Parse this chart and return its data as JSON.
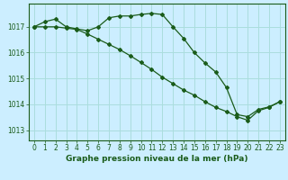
{
  "title": "Graphe pression niveau de la mer (hPa)",
  "background_color": "#cceeff",
  "grid_color": "#aadddd",
  "line_color": "#1a5c1a",
  "xlim": [
    -0.5,
    23.5
  ],
  "ylim": [
    1012.6,
    1017.9
  ],
  "yticks": [
    1013,
    1014,
    1015,
    1016,
    1017
  ],
  "xticks": [
    0,
    1,
    2,
    3,
    4,
    5,
    6,
    7,
    8,
    9,
    10,
    11,
    12,
    13,
    14,
    15,
    16,
    17,
    18,
    19,
    20,
    21,
    22,
    23
  ],
  "series1_x": [
    0,
    1,
    2,
    3,
    4,
    5,
    6,
    7,
    8,
    9,
    10,
    11,
    12,
    13,
    14,
    15,
    16,
    17,
    18,
    19,
    20,
    21,
    22,
    23
  ],
  "series1_y": [
    1017.0,
    1017.2,
    1017.3,
    1017.0,
    1016.92,
    1016.85,
    1017.0,
    1017.35,
    1017.42,
    1017.42,
    1017.48,
    1017.52,
    1017.48,
    1017.0,
    1016.55,
    1016.0,
    1015.6,
    1015.25,
    1014.65,
    1013.6,
    1013.52,
    1013.8,
    1013.9,
    1014.1
  ],
  "series2_x": [
    0,
    1,
    2,
    3,
    4,
    5,
    6,
    7,
    8,
    9,
    10,
    11,
    12,
    13,
    14,
    15,
    16,
    17,
    18,
    19,
    20,
    21,
    22,
    23
  ],
  "series2_y": [
    1017.0,
    1017.0,
    1017.0,
    1016.95,
    1016.9,
    1016.72,
    1016.52,
    1016.32,
    1016.12,
    1015.88,
    1015.62,
    1015.35,
    1015.05,
    1014.8,
    1014.55,
    1014.35,
    1014.1,
    1013.88,
    1013.72,
    1013.52,
    1013.38,
    1013.75,
    1013.88,
    1014.1
  ],
  "tick_fontsize": 5.5,
  "xlabel_fontsize": 6.5,
  "marker": "D",
  "markersize": 2.0,
  "linewidth": 0.9
}
